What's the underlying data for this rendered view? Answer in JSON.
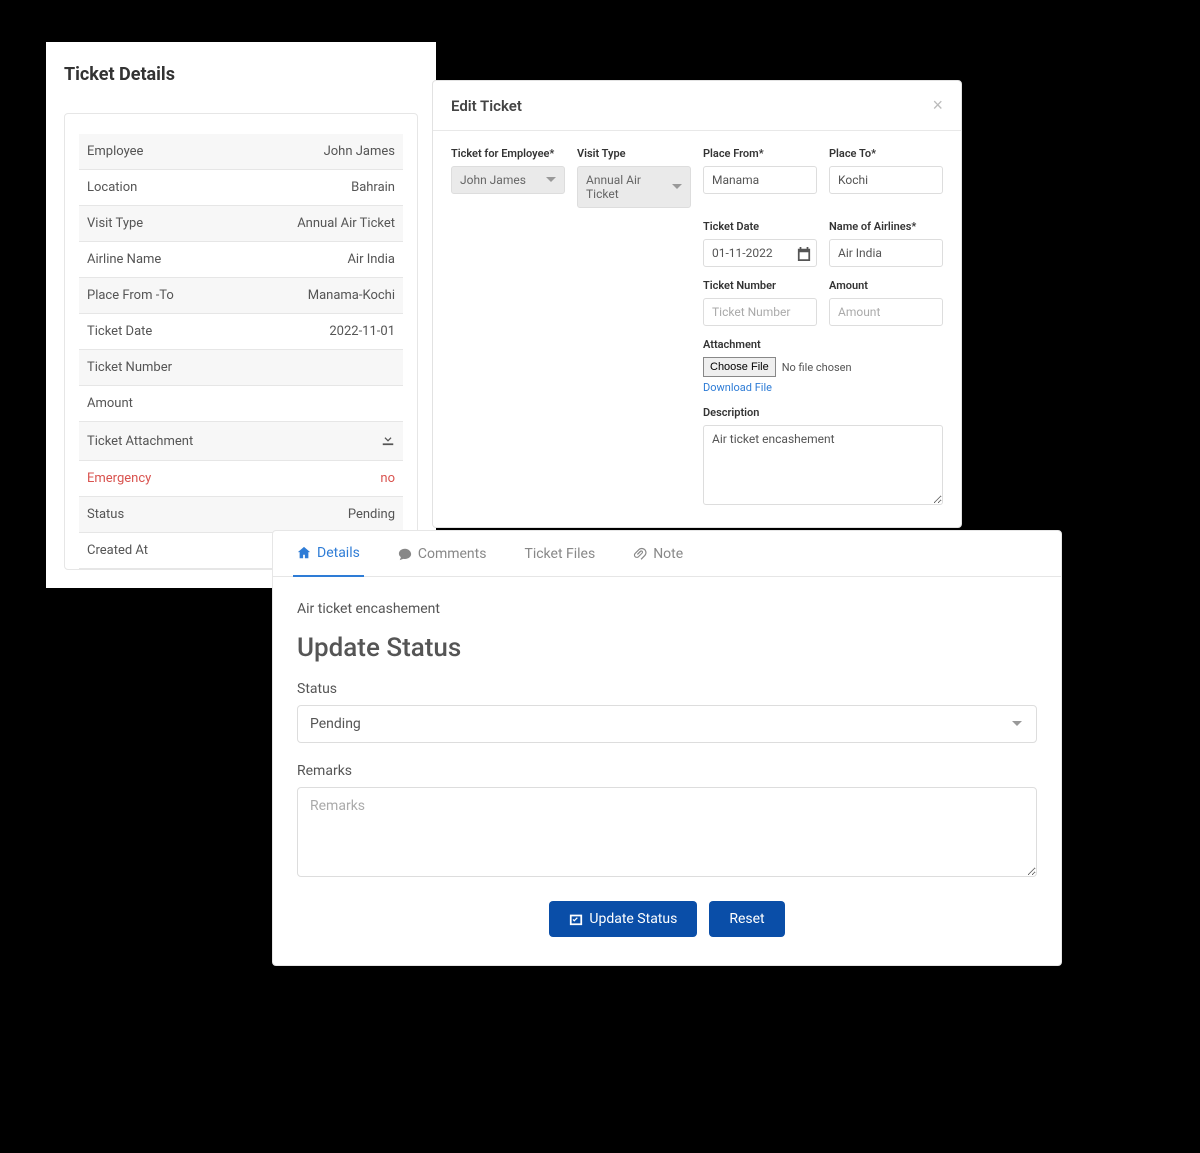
{
  "colors": {
    "primary": "#0a4ea8",
    "link": "#2e7cd6",
    "danger": "#d9534f",
    "text": "#555555",
    "border": "#e6e6e6",
    "stripe": "#f7f7f7"
  },
  "detailsPanel": {
    "title": "Ticket Details",
    "rows": [
      {
        "label": "Employee",
        "value": "John James"
      },
      {
        "label": "Location",
        "value": "Bahrain"
      },
      {
        "label": "Visit Type",
        "value": "Annual Air Ticket"
      },
      {
        "label": "Airline Name",
        "value": "Air India"
      },
      {
        "label": "Place From -To",
        "value": "Manama-Kochi"
      },
      {
        "label": "Ticket Date",
        "value": "2022-11-01"
      },
      {
        "label": "Ticket Number",
        "value": ""
      },
      {
        "label": "Amount",
        "value": ""
      },
      {
        "label": "Ticket Attachment",
        "value": "",
        "hasDownload": true
      },
      {
        "label": "Emergency",
        "value": "no",
        "danger": true
      },
      {
        "label": "Status",
        "value": "Pending"
      },
      {
        "label": "Created At",
        "value": ""
      }
    ]
  },
  "editPanel": {
    "title": "Edit Ticket",
    "fields": {
      "employee": {
        "label": "Ticket for Employee*",
        "value": "John James"
      },
      "visitType": {
        "label": "Visit Type",
        "value": "Annual Air Ticket"
      },
      "placeFrom": {
        "label": "Place From*",
        "value": "Manama"
      },
      "placeTo": {
        "label": "Place To*",
        "value": "Kochi"
      },
      "ticketDate": {
        "label": "Ticket Date",
        "value": "01-11-2022"
      },
      "airline": {
        "label": "Name of Airlines*",
        "value": "Air India"
      },
      "ticketNumber": {
        "label": "Ticket Number",
        "placeholder": "Ticket Number",
        "value": ""
      },
      "amount": {
        "label": "Amount",
        "placeholder": "Amount",
        "value": ""
      },
      "attachment": {
        "label": "Attachment",
        "chooseFile": "Choose File",
        "noFile": "No file chosen",
        "downloadLink": "Download File"
      },
      "description": {
        "label": "Description",
        "value": "Air ticket encashement"
      }
    }
  },
  "updatePanel": {
    "tabs": {
      "details": "Details",
      "comments": "Comments",
      "ticketFiles": "Ticket Files",
      "note": "Note"
    },
    "descText": "Air ticket encashement",
    "title": "Update Status",
    "statusLabel": "Status",
    "statusValue": "Pending",
    "remarksLabel": "Remarks",
    "remarksPlaceholder": "Remarks",
    "updateBtn": "Update Status",
    "resetBtn": "Reset"
  }
}
